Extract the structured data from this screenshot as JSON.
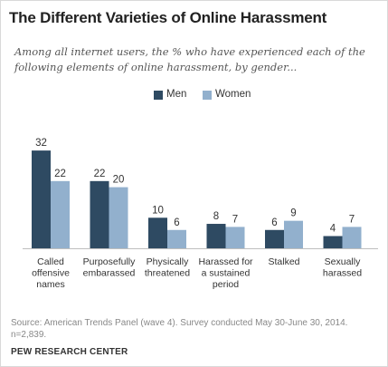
{
  "title": "The Different Varieties of Online Harassment",
  "subtitle": "Among all internet users, the % who have experienced each of the following elements of online harassment, by gender...",
  "source": "Source: American Trends Panel (wave 4). Survey conducted May 30-June 30, 2014. n=2,839.",
  "brand": "PEW RESEARCH CENTER",
  "colors": {
    "men": "#2e4a62",
    "women": "#92b0cd",
    "axis": "#bfbfbf",
    "text": "#333333"
  },
  "chart_data": {
    "type": "bar",
    "title": "The Different Varieties of Online Harassment",
    "categories": [
      "Called offensive names",
      "Purposefully embarassed",
      "Physically threatened",
      "Harassed for a sustained period",
      "Stalked",
      "Sexually harassed"
    ],
    "category_lines": [
      [
        "Called",
        "offensive",
        "names"
      ],
      [
        "Purposefully",
        "embarassed"
      ],
      [
        "Physically",
        "threatened"
      ],
      [
        "Harassed for",
        "a sustained",
        "period"
      ],
      [
        "Stalked"
      ],
      [
        "Sexually",
        "harassed"
      ]
    ],
    "series": [
      {
        "name": "Men",
        "values": [
          32,
          22,
          10,
          8,
          6,
          4
        ]
      },
      {
        "name": "Women",
        "values": [
          22,
          20,
          6,
          7,
          9,
          7
        ]
      }
    ],
    "ylim": [
      0,
      35
    ],
    "grid": false,
    "legend_position": "top-center",
    "data_labels": true
  }
}
